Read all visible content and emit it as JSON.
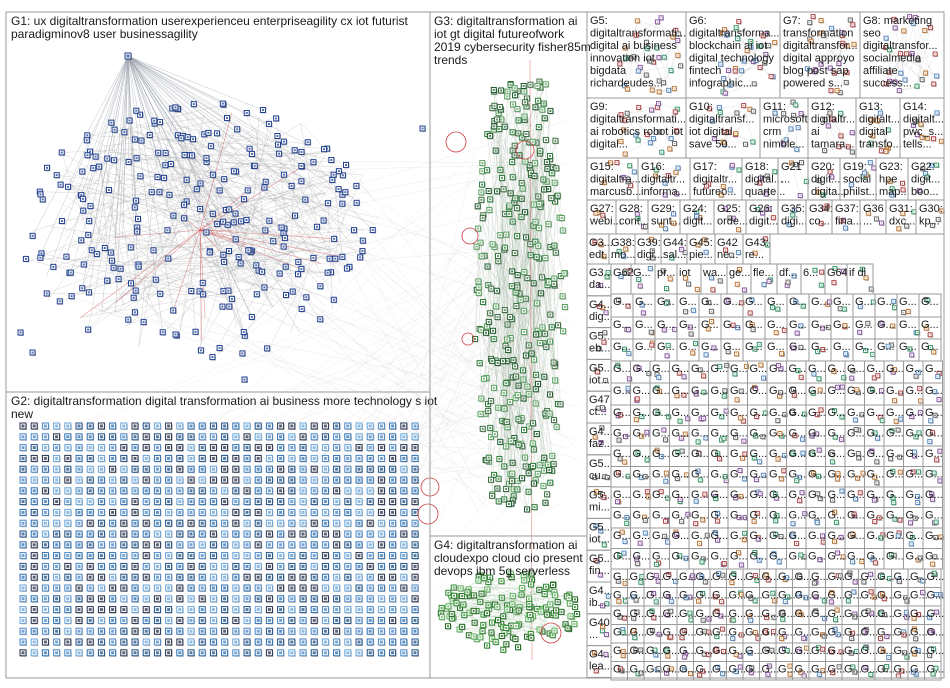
{
  "title": "",
  "groups": [
    {
      "id": "G1",
      "name": "G1: ux digitaltransformation userexperienceu enterpriseagility cx iot futurist paradigminov8 user businessagility",
      "lines": [
        "G1: ux digitaltransformation userexperienceu enterpriseagility cx iot futurist",
        "paradigminov8 user businessagility"
      ],
      "style": "ellipse",
      "color": "#1f3f8f"
    },
    {
      "id": "G2",
      "name": "G2: digitaltransformation digital transformation ai business more technology s iot new",
      "lines": [
        "G2: digitaltransformation digital transformation ai business more technology s iot",
        "new"
      ],
      "style": "grid",
      "color": "#2e6fb0"
    },
    {
      "id": "G3",
      "name": "G3: digitaltransformation ai iot gt digital futureofwork 2019 cybersecurity fisher85m trends",
      "lines": [
        "G3: digitaltransformation ai",
        "iot gt digital futureofwork",
        "2019 cybersecurity fisher85m",
        "trends"
      ],
      "style": "column",
      "color": "#2d7a3a"
    },
    {
      "id": "G4",
      "name": "G4: digitaltransformation ai cloudexpo cloud cio present devops ibm 5g serverless",
      "lines": [
        "G4: digitaltransformation ai",
        "cloudexpo cloud cio present",
        "devops ibm 5g serverless"
      ],
      "style": "blob",
      "color": "#2f8a2f"
    },
    {
      "id": "G5",
      "lines": [
        "G5:",
        "digitaltransformati...",
        "digital ai business",
        "innovation iot",
        "bigdata",
        "richardeudes..."
      ]
    },
    {
      "id": "G6",
      "lines": [
        "G6:",
        "digitaltransforma...",
        "blockchain ai iot",
        "digital technology",
        "fintech",
        "infographic..."
      ]
    },
    {
      "id": "G7",
      "lines": [
        "G7:",
        "transformation",
        "digitaltransfor...",
        "digital approyo",
        "blog post sap",
        "powered s..."
      ]
    },
    {
      "id": "G8",
      "lines": [
        "G8: marketing",
        "seo",
        "digitaltransfor...",
        "socialmedia",
        "affiliate",
        "success..."
      ]
    },
    {
      "id": "G9",
      "lines": [
        "G9:",
        "digitaltransformati...",
        "ai robotics robot iot",
        "digital..."
      ]
    },
    {
      "id": "G10",
      "lines": [
        "G10:",
        "digitaltransf...",
        "iot digital",
        "save 50..."
      ]
    },
    {
      "id": "G11",
      "lines": [
        "G11:",
        "microsoft",
        "crm",
        "nimble..."
      ]
    },
    {
      "id": "G12",
      "lines": [
        "G12:",
        "digitaltr...",
        "ai",
        "tamara..."
      ]
    },
    {
      "id": "G13",
      "lines": [
        "G13:",
        "digitalt...",
        "digital",
        "transfo..."
      ]
    },
    {
      "id": "G14",
      "lines": [
        "G14:",
        "digitalt...",
        "pwc_s...",
        "tells..."
      ]
    },
    {
      "id": "G15",
      "lines": [
        "G15:",
        "digitaltra...",
        "marcusb..."
      ]
    },
    {
      "id": "G16",
      "lines": [
        "G16:",
        "digitaltr...",
        "informa..."
      ]
    },
    {
      "id": "G17",
      "lines": [
        "G17:",
        "digitaltr...",
        "futureo..."
      ]
    },
    {
      "id": "G18",
      "lines": [
        "G18:",
        "digital...",
        "quarte..."
      ]
    },
    {
      "id": "G21",
      "lines": [
        "G21",
        "..."
      ]
    },
    {
      "id": "G20",
      "lines": [
        "G20:",
        "digit...",
        "digita..."
      ]
    },
    {
      "id": "G19",
      "lines": [
        "G19:",
        "social",
        "philst..."
      ]
    },
    {
      "id": "G23",
      "lines": [
        "G23:",
        "hpe",
        "map..."
      ]
    },
    {
      "id": "G22",
      "lines": [
        "G22:",
        "digit...",
        "boo..."
      ]
    },
    {
      "id": "G27",
      "lines": [
        "G27:",
        "webi..."
      ]
    },
    {
      "id": "G28",
      "lines": [
        "G28:",
        "cont..."
      ]
    },
    {
      "id": "G29",
      "lines": [
        "G29:",
        "sunt..."
      ]
    },
    {
      "id": "G24",
      "lines": [
        "G24:",
        "digit..."
      ]
    },
    {
      "id": "G25",
      "lines": [
        "G25:",
        "orde..."
      ]
    },
    {
      "id": "G26",
      "lines": [
        "G26:",
        "digit..."
      ]
    },
    {
      "id": "G35",
      "lines": [
        "G35:",
        "digi..."
      ]
    },
    {
      "id": "G34",
      "lines": [
        "G34:",
        "co..."
      ]
    },
    {
      "id": "G37",
      "lines": [
        "G37:",
        "fina..."
      ]
    },
    {
      "id": "G36",
      "lines": [
        "G36",
        "..."
      ]
    },
    {
      "id": "G31",
      "lines": [
        "G31:",
        "dxc..."
      ]
    },
    {
      "id": "G30",
      "lines": [
        "G30:",
        "kp..."
      ]
    }
  ],
  "g5_block": {
    "row_a": [
      {
        "lines": [
          "G3...",
          "edt..."
        ]
      },
      {
        "lines": [
          "G38:",
          "mo..."
        ]
      },
      {
        "lines": [
          "G39:",
          "digi..."
        ]
      },
      {
        "lines": [
          "G44:",
          "sal..."
        ]
      },
      {
        "lines": [
          "G45:",
          "pie..."
        ]
      },
      {
        "lines": [
          "G42",
          "ne..."
        ]
      },
      {
        "lines": [
          "G43:",
          "re..."
        ]
      }
    ],
    "left_column": [
      {
        "lines": [
          "G3...",
          "da..."
        ]
      },
      {
        "lines": [
          "G4...",
          "dig..."
        ]
      },
      {
        "lines": [
          "G5...",
          "eb..."
        ]
      },
      {
        "lines": [
          "G5...",
          "iot..."
        ]
      },
      {
        "lines": [
          "G47",
          "ct..."
        ]
      },
      {
        "lines": [
          "G4...",
          "faz..."
        ]
      },
      {
        "lines": [
          "G5...",
          "cu..."
        ]
      },
      {
        "lines": [
          "G5...",
          "mi..."
        ]
      },
      {
        "lines": [
          "G5...",
          "iot..."
        ]
      },
      {
        "lines": [
          "G5...",
          "fin..."
        ]
      },
      {
        "lines": [
          "G4...",
          "ib..."
        ]
      },
      {
        "lines": [
          "G40",
          "..."
        ]
      },
      {
        "lines": [
          "G4...",
          "lea..."
        ]
      }
    ],
    "g_row_labels": [
      "G62",
      "G...",
      "pr...",
      "iot",
      "wa...",
      "ge...",
      "fle...",
      "df...",
      "6...",
      "G64",
      "if di"
    ],
    "tiny_label": "G..."
  }
}
